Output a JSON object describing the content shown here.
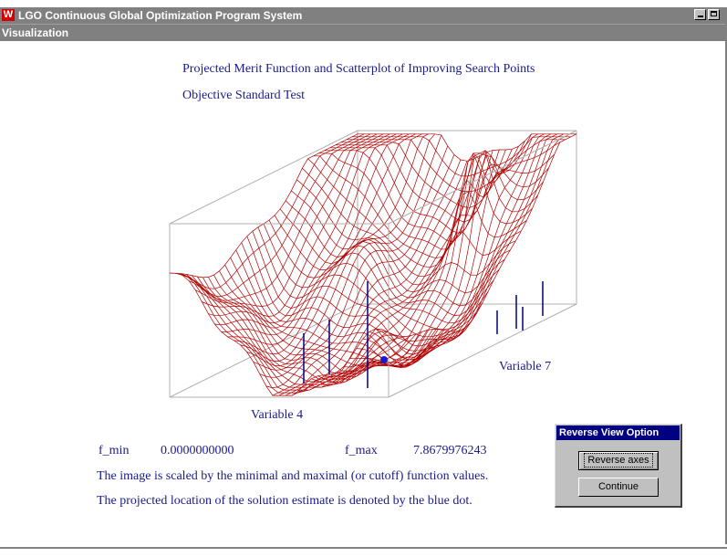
{
  "window": {
    "title": "LGO Continuous Global Optimization Program System",
    "logo_glyph": "W"
  },
  "menu": {
    "items": [
      {
        "label": "Visualization"
      }
    ]
  },
  "chart": {
    "title_line1": "Projected Merit Function and Scatterplot of Improving Search Points",
    "title_line2": "Objective  Standard Test",
    "xlabel": "Variable 4",
    "zlabel": "Variable 7",
    "surface_color": "#b00000",
    "box_color": "#b0b0b0",
    "point_color": "#000080"
  },
  "stats": {
    "fmin_label": "f_min",
    "fmin_value": "0.0000000000",
    "fmax_label": "f_max",
    "fmax_value": "7.8679976243"
  },
  "notes": {
    "line1": "The image is scaled by the minimal and maximal (or cutoff) function values.",
    "line2": "The projected location of the solution estimate is denoted by the blue dot."
  },
  "dialog": {
    "title": "Reverse View Option",
    "reverse_label": "Reverse axes",
    "continue_label": "Continue"
  },
  "icons": {
    "logo": "lgo-logo-icon",
    "minimize": "minimize-icon",
    "maximize": "maximize-icon"
  }
}
